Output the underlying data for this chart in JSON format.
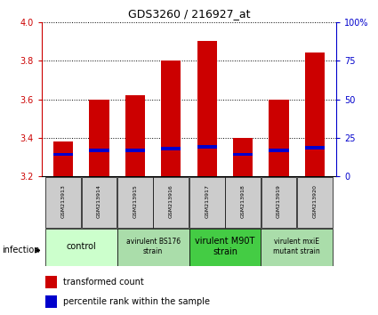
{
  "title": "GDS3260 / 216927_at",
  "samples": [
    "GSM213913",
    "GSM213914",
    "GSM213915",
    "GSM213916",
    "GSM213917",
    "GSM213918",
    "GSM213919",
    "GSM213920"
  ],
  "bar_heights": [
    3.38,
    3.6,
    3.62,
    3.8,
    3.9,
    3.4,
    3.6,
    3.84
  ],
  "percentile_values": [
    3.305,
    3.325,
    3.325,
    3.335,
    3.345,
    3.305,
    3.325,
    3.34
  ],
  "ylim": [
    3.2,
    4.0
  ],
  "yticks_left": [
    3.2,
    3.4,
    3.6,
    3.8,
    4.0
  ],
  "yticks_right": [
    0,
    25,
    50,
    75,
    100
  ],
  "bar_color": "#cc0000",
  "blue_color": "#0000cc",
  "bar_width": 0.55,
  "groups": [
    {
      "label": "control",
      "samples": [
        0,
        1
      ],
      "color": "#ccffcc",
      "font_size": 7
    },
    {
      "label": "avirulent BS176\nstrain",
      "samples": [
        2,
        3
      ],
      "color": "#aaddaa",
      "font_size": 5.5
    },
    {
      "label": "virulent M90T\nstrain",
      "samples": [
        4,
        5
      ],
      "color": "#44cc44",
      "font_size": 7
    },
    {
      "label": "virulent mxiE\nmutant strain",
      "samples": [
        6,
        7
      ],
      "color": "#aaddaa",
      "font_size": 5.5
    }
  ],
  "tick_label_bg": "#cccccc",
  "infection_label": "infection",
  "legend_red_label": "transformed count",
  "legend_blue_label": "percentile rank within the sample",
  "left_tick_color": "#cc0000",
  "right_tick_color": "#0000cc",
  "title_fontsize": 9,
  "tick_fontsize": 7,
  "sample_fontsize": 4.5
}
